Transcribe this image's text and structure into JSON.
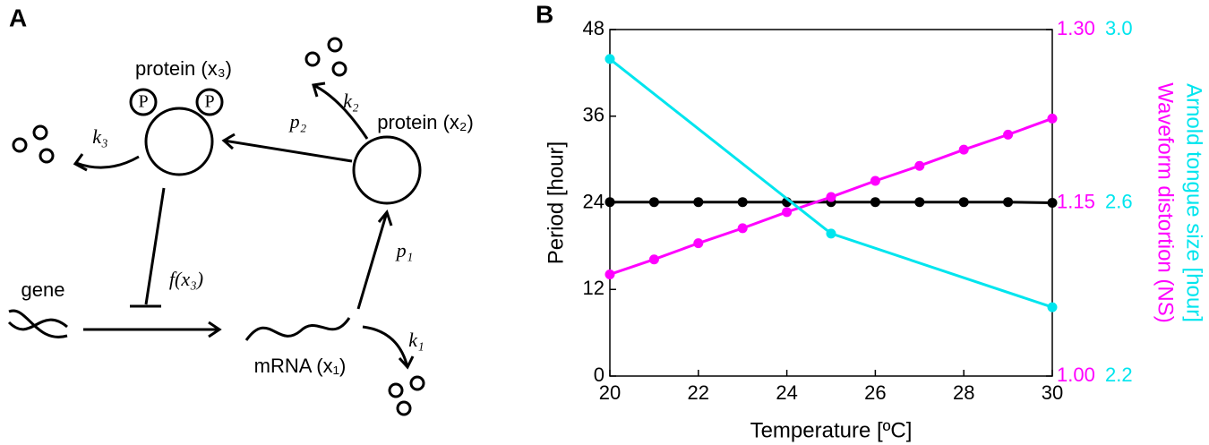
{
  "panel_a": {
    "label": "A",
    "protein_x3": "protein (x₃)",
    "protein_x2": "protein (x₂)",
    "gene": "gene",
    "mrna": "mRNA (x₁)",
    "phospho": [
      "P",
      "P"
    ],
    "f": "f(x₃)",
    "k1": "k₁",
    "k2": "k₂",
    "k3": "k₃",
    "p1": "p₁",
    "p2": "p₂"
  },
  "chart_data": {
    "type": "line",
    "panel_label": "B",
    "xlabel": "Temperature [ºC]",
    "ylabel": "Period [hour]",
    "y2label": "Waveform distortion (NS)",
    "y3label": "Arnold tongue size [hour]",
    "xlim": [
      20,
      30
    ],
    "xticks": [
      20,
      22,
      24,
      26,
      28,
      30
    ],
    "ylim": [
      0,
      48
    ],
    "yticks": [
      0,
      12,
      24,
      36,
      48
    ],
    "y2lim": [
      1.0,
      1.3
    ],
    "y2ticks": [
      {
        "value": 1.0,
        "label": "1.00"
      },
      1.15,
      {
        "value": 1.3,
        "label": "1.30"
      }
    ],
    "y2color": "#ff00ff",
    "y3lim": [
      2.2,
      3.0
    ],
    "y3ticks": [
      2.2,
      2.6,
      {
        "value": 3.0,
        "label": "3.0"
      }
    ],
    "y3color": "#00e5ee",
    "series": [
      {
        "color": "#000000",
        "axis": "y",
        "x": [
          20,
          21,
          22,
          23,
          24,
          25,
          26,
          27,
          28,
          29,
          30
        ],
        "values": [
          24.1,
          24.1,
          24.1,
          24.1,
          24.1,
          24.1,
          24.1,
          24.1,
          24.1,
          24.1,
          24.0
        ]
      },
      {
        "color": "#ff00ff",
        "axis": "y2",
        "x": [
          20,
          21,
          22,
          23,
          24,
          25,
          26,
          27,
          28,
          29,
          30
        ],
        "values": [
          1.088,
          1.101,
          1.115,
          1.128,
          1.142,
          1.155,
          1.169,
          1.182,
          1.196,
          1.209,
          1.223
        ]
      },
      {
        "color": "#00e5ee",
        "axis": "y3",
        "x": [
          20,
          25,
          30
        ],
        "values": [
          2.932,
          2.529,
          2.359
        ]
      }
    ]
  }
}
